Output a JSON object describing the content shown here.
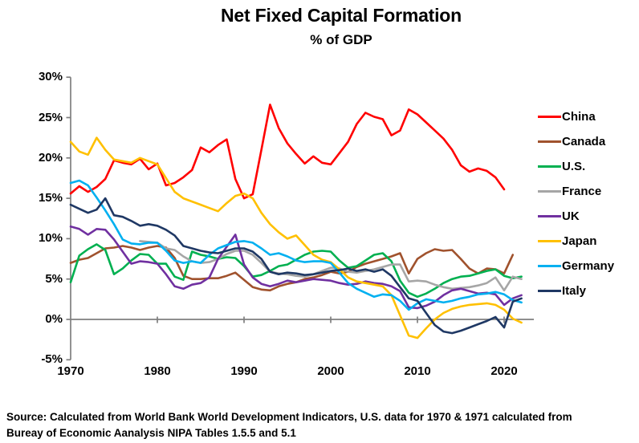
{
  "title": "Net Fixed Capital Formation",
  "subtitle": "% of GDP",
  "source": {
    "line1": "Source:  Calculated from World Bank World Development Indicators, U.S. data for 1970 & 1971 calculated from",
    "line2": "Bureay of Economic Aanalysis NIPA Tables 1.5.5 and 5.1"
  },
  "chart_data": {
    "type": "line",
    "title": "Net Fixed Capital Formation",
    "subtitle": "% of GDP",
    "xlabel": "",
    "ylabel": "% of GDP",
    "ylim": [
      -5,
      30
    ],
    "xlim": [
      1969.5,
      2023.5
    ],
    "grid": "zero-line-only",
    "legend_position": "right",
    "axis_color": "#7F7F7F",
    "y_tick_values": [
      30,
      25,
      20,
      15,
      10,
      5,
      0,
      -5
    ],
    "y_tick_labels": [
      "30%",
      "25%",
      "20%",
      "15%",
      "10%",
      "5%",
      "0%",
      "-5%"
    ],
    "x_tick_values": [
      1970,
      1980,
      1990,
      2000,
      2010,
      2020
    ],
    "x_tick_labels": [
      "1970",
      "1980",
      "1990",
      "2000",
      "2010",
      "2020"
    ],
    "series": [
      {
        "name": "China",
        "color": "#FF0000",
        "start_year": 1970,
        "end_year": 2020,
        "values": [
          15.6,
          16.5,
          15.8,
          16.4,
          17.4,
          19.7,
          19.4,
          19.2,
          19.9,
          18.6,
          19.3,
          16.6,
          16.9,
          17.6,
          18.5,
          21.3,
          20.7,
          21.6,
          22.3,
          17.4,
          15.0,
          15.5,
          21.0,
          26.6,
          23.7,
          21.8,
          20.5,
          19.3,
          20.2,
          19.4,
          19.2,
          20.6,
          22.0,
          24.2,
          25.6,
          25.1,
          24.8,
          22.8,
          23.4,
          26.0,
          25.4,
          24.4,
          23.4,
          22.4,
          21.0,
          19.1,
          18.3,
          18.7,
          18.4,
          17.6,
          16.1
        ]
      },
      {
        "name": "Canada",
        "color": "#A0522D",
        "start_year": 1970,
        "end_year": 2021,
        "values": [
          7.0,
          7.4,
          7.6,
          8.2,
          8.8,
          8.9,
          9.1,
          8.9,
          8.6,
          8.9,
          9.1,
          8.9,
          7.6,
          5.4,
          5.0,
          5.0,
          5.1,
          5.1,
          5.4,
          5.8,
          4.9,
          4.0,
          3.7,
          3.6,
          4.1,
          4.4,
          4.6,
          5.0,
          5.2,
          5.5,
          5.9,
          5.7,
          5.9,
          6.5,
          6.9,
          7.2,
          7.5,
          7.8,
          8.2,
          5.7,
          7.5,
          8.2,
          8.7,
          8.5,
          8.6,
          7.5,
          6.3,
          5.7,
          6.3,
          6.2,
          5.7,
          8.0
        ]
      },
      {
        "name": "U.S.",
        "color": "#00B050",
        "start_year": 1970,
        "end_year": 2022,
        "values": [
          4.6,
          7.9,
          8.7,
          9.3,
          8.6,
          5.6,
          6.3,
          7.3,
          8.1,
          8.0,
          6.9,
          6.9,
          5.3,
          4.9,
          8.4,
          8.0,
          7.8,
          7.5,
          7.7,
          7.6,
          6.6,
          5.3,
          5.5,
          6.0,
          6.6,
          6.8,
          7.4,
          8.0,
          8.4,
          8.5,
          8.4,
          7.3,
          6.4,
          6.6,
          7.3,
          8.0,
          8.2,
          7.2,
          4.8,
          3.3,
          2.8,
          3.2,
          3.8,
          4.5,
          5.0,
          5.3,
          5.4,
          5.7,
          6.0,
          6.2,
          5.4,
          5.1,
          5.3
        ]
      },
      {
        "name": "France",
        "color": "#A6A6A6",
        "start_year": 1978,
        "end_year": 2022,
        "values": [
          9.7,
          9.6,
          9.5,
          8.8,
          8.6,
          7.8,
          7.2,
          7.0,
          7.1,
          7.5,
          8.1,
          8.5,
          8.5,
          8.0,
          7.0,
          5.9,
          5.7,
          5.6,
          5.4,
          5.3,
          5.6,
          6.0,
          6.4,
          6.3,
          5.9,
          5.8,
          6.0,
          6.2,
          6.5,
          6.8,
          6.8,
          4.7,
          4.8,
          4.7,
          4.3,
          4.0,
          3.8,
          3.9,
          4.0,
          4.2,
          4.5,
          5.2,
          3.6,
          5.3,
          5.0
        ]
      },
      {
        "name": "UK",
        "color": "#7030A0",
        "start_year": 1970,
        "end_year": 2022,
        "values": [
          11.5,
          11.2,
          10.5,
          11.2,
          11.1,
          9.9,
          8.4,
          6.9,
          7.2,
          7.1,
          6.9,
          5.6,
          4.1,
          3.8,
          4.3,
          4.5,
          5.2,
          7.5,
          9.0,
          10.5,
          6.8,
          5.2,
          4.4,
          4.1,
          4.4,
          4.8,
          4.6,
          4.8,
          5.0,
          4.9,
          4.8,
          4.5,
          4.3,
          4.4,
          4.7,
          4.5,
          4.4,
          4.1,
          3.5,
          1.5,
          1.4,
          1.7,
          2.2,
          3.0,
          3.6,
          3.8,
          3.5,
          3.2,
          3.3,
          3.1,
          1.8,
          2.6,
          3.0
        ]
      },
      {
        "name": "Japan",
        "color": "#FFC000",
        "start_year": 1970,
        "end_year": 2022,
        "values": [
          22.0,
          20.8,
          20.4,
          22.5,
          21.0,
          19.8,
          19.6,
          19.4,
          20.0,
          19.6,
          19.2,
          17.5,
          15.8,
          15.0,
          14.6,
          14.2,
          13.8,
          13.4,
          14.4,
          15.3,
          15.6,
          15.0,
          13.2,
          11.8,
          10.8,
          10.0,
          10.4,
          9.2,
          8.0,
          7.4,
          7.1,
          6.2,
          5.2,
          4.7,
          4.5,
          4.3,
          4.1,
          3.0,
          0.5,
          -2.0,
          -2.3,
          -1.1,
          0.0,
          0.8,
          1.3,
          1.6,
          1.8,
          1.9,
          2.0,
          1.8,
          1.2,
          0.1,
          -0.4
        ]
      },
      {
        "name": "Germany",
        "color": "#00B0F0",
        "start_year": 1970,
        "end_year": 2022,
        "values": [
          16.9,
          17.2,
          16.6,
          15.1,
          13.5,
          11.8,
          9.9,
          9.4,
          9.3,
          9.5,
          9.5,
          8.5,
          7.3,
          7.0,
          7.2,
          7.0,
          8.0,
          8.8,
          9.2,
          9.6,
          9.7,
          9.5,
          8.8,
          8.0,
          8.2,
          7.8,
          7.3,
          7.1,
          7.2,
          7.2,
          7.0,
          5.8,
          4.5,
          3.8,
          3.3,
          2.8,
          3.1,
          3.0,
          2.3,
          1.2,
          2.0,
          2.5,
          2.3,
          2.1,
          2.3,
          2.6,
          2.8,
          3.1,
          3.2,
          3.4,
          3.1,
          2.4,
          2.1
        ]
      },
      {
        "name": "Italy",
        "color": "#1F3864",
        "start_year": 1970,
        "end_year": 2022,
        "values": [
          14.2,
          13.7,
          13.2,
          13.6,
          15.0,
          12.9,
          12.7,
          12.2,
          11.6,
          11.8,
          11.6,
          11.1,
          10.4,
          9.1,
          8.8,
          8.5,
          8.3,
          8.2,
          8.5,
          8.8,
          8.8,
          8.4,
          7.5,
          5.9,
          5.6,
          5.8,
          5.7,
          5.5,
          5.6,
          5.8,
          6.0,
          6.1,
          6.3,
          6.0,
          6.2,
          5.9,
          6.2,
          5.4,
          4.0,
          2.6,
          2.3,
          0.8,
          -0.7,
          -1.5,
          -1.7,
          -1.4,
          -1.0,
          -0.6,
          -0.2,
          0.3,
          -1.0,
          2.2,
          2.6
        ]
      }
    ]
  }
}
